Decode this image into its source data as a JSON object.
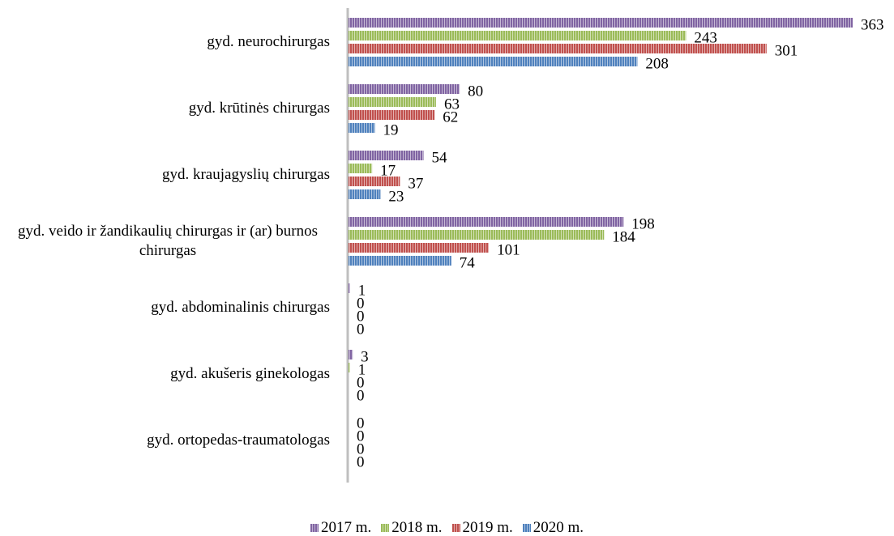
{
  "chart_data": {
    "type": "hbar",
    "categories": [
      "gyd. neurochirurgas",
      "gyd. krūtinės chirurgas",
      "gyd. kraujagyslių chirurgas",
      "gyd. veido ir žandikaulių chirurgas ir (ar) burnos chirurgas",
      "gyd. abdominalinis chirurgas",
      "gyd. akušeris ginekologas",
      "gyd. ortopedas-traumatologas"
    ],
    "series": [
      {
        "name": "2017 m.",
        "color": "#8064a2",
        "values": [
          363,
          80,
          54,
          198,
          1,
          3,
          0
        ]
      },
      {
        "name": "2018 m.",
        "color": "#9bbb59",
        "values": [
          243,
          63,
          17,
          184,
          0,
          1,
          0
        ]
      },
      {
        "name": "2019 m.",
        "color": "#c0504d",
        "values": [
          301,
          62,
          37,
          101,
          0,
          0,
          0
        ]
      },
      {
        "name": "2020 m.",
        "color": "#4f81bd",
        "values": [
          208,
          19,
          23,
          74,
          0,
          0,
          0
        ]
      }
    ],
    "legend": "bottom"
  }
}
